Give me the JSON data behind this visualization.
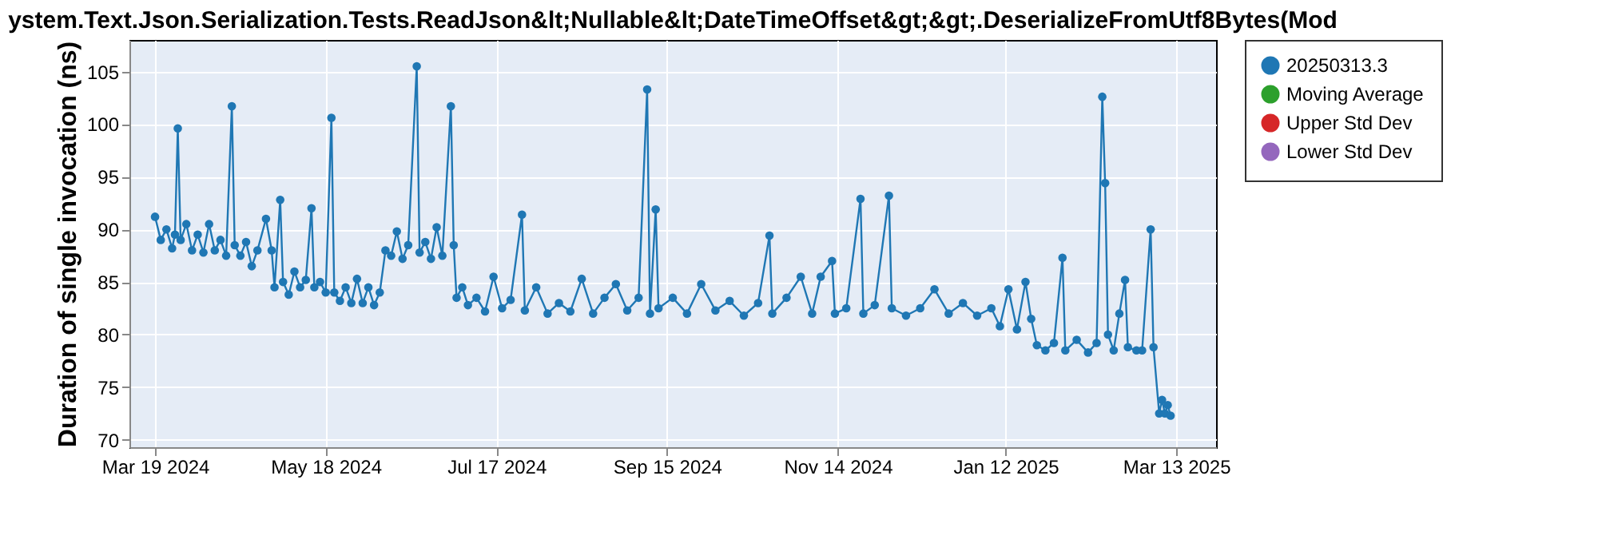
{
  "chart_data": {
    "type": "line",
    "title": "ystem.Text.Json.Serialization.Tests.ReadJson&lt;Nullable&lt;DateTimeOffset&gt;&gt;.DeserializeFromUtf8Bytes(Mod",
    "ylabel": "Duration of single invocation (ns)",
    "xlim": [
      "2024-03-10",
      "2025-03-27"
    ],
    "xticks": [
      {
        "value": "2024-03-19",
        "label": "Mar 19 2024"
      },
      {
        "value": "2024-05-18",
        "label": "May 18 2024"
      },
      {
        "value": "2024-07-17",
        "label": "Jul 17 2024"
      },
      {
        "value": "2024-09-15",
        "label": "Sep 15 2024"
      },
      {
        "value": "2024-11-14",
        "label": "Nov 14 2024"
      },
      {
        "value": "2025-01-12",
        "label": "Jan 12 2025"
      },
      {
        "value": "2025-03-13",
        "label": "Mar 13 2025"
      }
    ],
    "ylim": [
      69.3,
      108
    ],
    "yticks": [
      70,
      75,
      80,
      85,
      90,
      95,
      100,
      105
    ],
    "grid": true,
    "legend": "right",
    "marker": "circle",
    "line_style": "solid",
    "series": [
      {
        "name": "20250313.3",
        "color": "#1f77b4",
        "x": [
          "2024-03-19",
          "2024-03-21",
          "2024-03-23",
          "2024-03-25",
          "2024-03-26",
          "2024-03-27",
          "2024-03-28",
          "2024-03-30",
          "2024-04-01",
          "2024-04-03",
          "2024-04-05",
          "2024-04-07",
          "2024-04-09",
          "2024-04-11",
          "2024-04-13",
          "2024-04-15",
          "2024-04-16",
          "2024-04-18",
          "2024-04-20",
          "2024-04-22",
          "2024-04-24",
          "2024-04-27",
          "2024-04-29",
          "2024-04-30",
          "2024-05-02",
          "2024-05-03",
          "2024-05-05",
          "2024-05-07",
          "2024-05-09",
          "2024-05-11",
          "2024-05-13",
          "2024-05-14",
          "2024-05-16",
          "2024-05-18",
          "2024-05-20",
          "2024-05-21",
          "2024-05-23",
          "2024-05-25",
          "2024-05-27",
          "2024-05-29",
          "2024-05-31",
          "2024-06-02",
          "2024-06-04",
          "2024-06-06",
          "2024-06-08",
          "2024-06-10",
          "2024-06-12",
          "2024-06-14",
          "2024-06-16",
          "2024-06-19",
          "2024-06-20",
          "2024-06-22",
          "2024-06-24",
          "2024-06-26",
          "2024-06-28",
          "2024-07-01",
          "2024-07-02",
          "2024-07-03",
          "2024-07-05",
          "2024-07-07",
          "2024-07-10",
          "2024-07-13",
          "2024-07-16",
          "2024-07-19",
          "2024-07-22",
          "2024-07-26",
          "2024-07-27",
          "2024-07-31",
          "2024-08-04",
          "2024-08-08",
          "2024-08-12",
          "2024-08-16",
          "2024-08-20",
          "2024-08-24",
          "2024-08-28",
          "2024-09-01",
          "2024-09-05",
          "2024-09-08",
          "2024-09-09",
          "2024-09-11",
          "2024-09-12",
          "2024-09-17",
          "2024-09-22",
          "2024-09-27",
          "2024-10-02",
          "2024-10-07",
          "2024-10-12",
          "2024-10-17",
          "2024-10-21",
          "2024-10-22",
          "2024-10-27",
          "2024-11-01",
          "2024-11-05",
          "2024-11-08",
          "2024-11-12",
          "2024-11-13",
          "2024-11-17",
          "2024-11-22",
          "2024-11-23",
          "2024-11-27",
          "2024-12-02",
          "2024-12-03",
          "2024-12-08",
          "2024-12-13",
          "2024-12-18",
          "2024-12-23",
          "2024-12-28",
          "2025-01-02",
          "2025-01-07",
          "2025-01-10",
          "2025-01-13",
          "2025-01-16",
          "2025-01-19",
          "2025-01-21",
          "2025-01-23",
          "2025-01-26",
          "2025-01-29",
          "2025-02-01",
          "2025-02-02",
          "2025-02-06",
          "2025-02-10",
          "2025-02-13",
          "2025-02-15",
          "2025-02-16",
          "2025-02-17",
          "2025-02-19",
          "2025-02-21",
          "2025-02-23",
          "2025-02-24",
          "2025-02-27",
          "2025-03-01",
          "2025-03-04",
          "2025-03-05",
          "2025-03-07",
          "2025-03-08",
          "2025-03-09",
          "2025-03-10",
          "2025-03-11"
        ],
        "values": [
          91.2,
          89,
          90,
          88.2,
          89.5,
          99.6,
          89,
          90.5,
          88,
          89.5,
          87.8,
          90.5,
          88,
          89,
          87.5,
          101.7,
          88.5,
          87.5,
          88.8,
          86.5,
          88,
          91,
          88,
          84.5,
          92.8,
          85,
          83.8,
          86,
          84.5,
          85.2,
          92,
          84.5,
          85,
          84,
          100.6,
          84,
          83.2,
          84.5,
          83,
          85.3,
          83,
          84.5,
          82.8,
          84,
          88,
          87.5,
          89.8,
          87.2,
          88.5,
          105.5,
          87.8,
          88.8,
          87.2,
          90.2,
          87.5,
          101.7,
          88.5,
          83.5,
          84.5,
          82.8,
          83.5,
          82.2,
          85.5,
          82.5,
          83.3,
          91.4,
          82.3,
          84.5,
          82,
          83,
          82.2,
          85.3,
          82,
          83.5,
          84.8,
          82.3,
          83.5,
          103.3,
          82,
          91.9,
          82.5,
          83.5,
          82,
          84.8,
          82.3,
          83.2,
          81.8,
          83,
          89.4,
          82,
          83.5,
          85.5,
          82,
          85.5,
          87,
          82,
          82.5,
          92.9,
          82,
          82.8,
          93.2,
          82.5,
          81.8,
          82.5,
          84.3,
          82,
          83,
          81.8,
          82.5,
          80.8,
          84.3,
          80.5,
          85,
          81.5,
          79,
          78.5,
          79.2,
          87.3,
          78.5,
          79.5,
          78.3,
          79.2,
          102.6,
          94.4,
          80,
          78.5,
          82,
          85.2,
          78.8,
          78.5,
          78.5,
          90,
          78.8,
          72.5,
          73.8,
          72.5,
          73.3,
          72.3
        ]
      },
      {
        "name": "Moving Average",
        "color": "#2ca02c"
      },
      {
        "name": "Upper Std Dev",
        "color": "#d62728"
      },
      {
        "name": "Lower Std Dev",
        "color": "#9467bd"
      }
    ]
  }
}
